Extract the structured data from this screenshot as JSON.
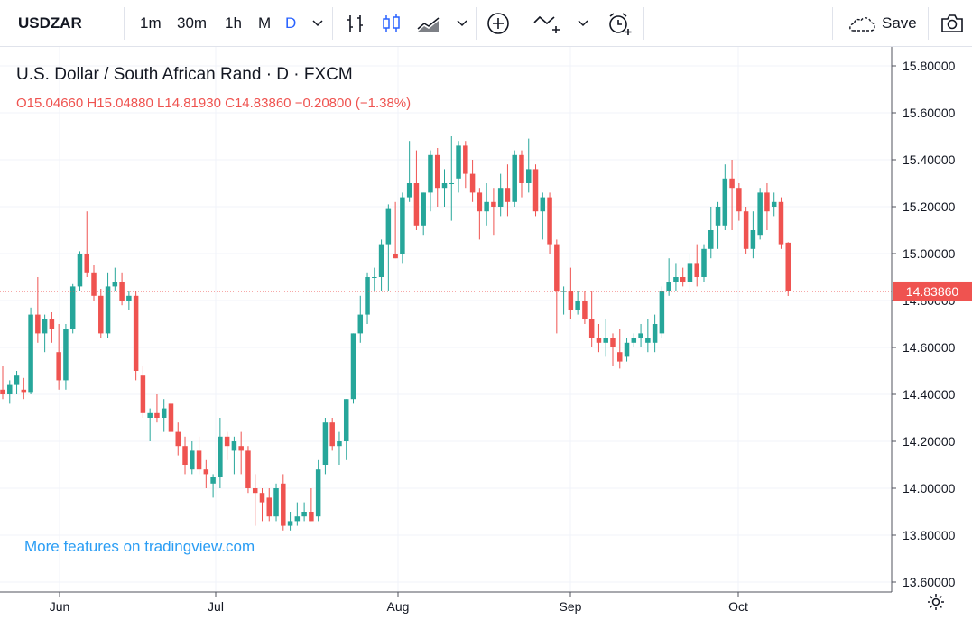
{
  "toolbar": {
    "symbol": "USDZAR",
    "intervals": [
      "1m",
      "30m",
      "1h",
      "M",
      "D"
    ],
    "active_interval": "D",
    "save_label": "Save",
    "accent": "#2962ff"
  },
  "legend": {
    "title": "U.S. Dollar / South African Rand · D · FXCM",
    "open_key": "O",
    "open": "15.04660",
    "high_key": "H",
    "high": "15.04880",
    "low_key": "L",
    "low": "14.81930",
    "close_key": "C",
    "close": "14.83860",
    "change": "−0.20800 (−1.38%)"
  },
  "promo": "More features on tradingview.com",
  "current_price_label": "14.83860",
  "colors": {
    "up": "#26a69a",
    "down": "#ef5350",
    "grid": "#f0f3fa",
    "axis": "#50535e"
  },
  "chart_data": {
    "type": "candlestick",
    "x_ticks": [
      "Jun",
      "Jul",
      "Aug",
      "Sep",
      "Oct"
    ],
    "y_ticks": [
      "13.60000",
      "13.80000",
      "14.00000",
      "14.20000",
      "14.40000",
      "14.60000",
      "14.80000",
      "15.00000",
      "15.20000",
      "15.40000",
      "15.60000",
      "15.80000"
    ],
    "ylim": [
      13.6,
      15.85
    ],
    "last_price": 14.8386,
    "candles": [
      [
        14.42,
        14.52,
        14.38,
        14.4
      ],
      [
        14.4,
        14.46,
        14.36,
        14.44
      ],
      [
        14.44,
        14.5,
        14.4,
        14.48
      ],
      [
        14.42,
        14.47,
        14.38,
        14.41
      ],
      [
        14.41,
        14.77,
        14.4,
        14.74
      ],
      [
        14.74,
        14.9,
        14.62,
        14.66
      ],
      [
        14.66,
        14.74,
        14.58,
        14.72
      ],
      [
        14.72,
        14.75,
        14.62,
        14.68
      ],
      [
        14.58,
        14.7,
        14.42,
        14.46
      ],
      [
        14.46,
        14.7,
        14.42,
        14.68
      ],
      [
        14.68,
        14.87,
        14.66,
        14.86
      ],
      [
        14.86,
        15.01,
        14.84,
        15.0
      ],
      [
        15.0,
        15.18,
        14.9,
        14.92
      ],
      [
        14.92,
        14.95,
        14.8,
        14.82
      ],
      [
        14.82,
        14.85,
        14.64,
        14.66
      ],
      [
        14.66,
        14.92,
        14.64,
        14.86
      ],
      [
        14.86,
        14.94,
        14.84,
        14.88
      ],
      [
        14.88,
        14.92,
        14.78,
        14.8
      ],
      [
        14.8,
        14.84,
        14.76,
        14.82
      ],
      [
        14.82,
        14.84,
        14.46,
        14.5
      ],
      [
        14.48,
        14.52,
        14.3,
        14.32
      ],
      [
        14.3,
        14.34,
        14.2,
        14.32
      ],
      [
        14.32,
        14.4,
        14.28,
        14.3
      ],
      [
        14.3,
        14.38,
        14.24,
        14.34
      ],
      [
        14.36,
        14.37,
        14.22,
        14.24
      ],
      [
        14.24,
        14.28,
        14.14,
        14.18
      ],
      [
        14.18,
        14.22,
        14.06,
        14.1
      ],
      [
        14.08,
        14.2,
        14.06,
        14.16
      ],
      [
        14.16,
        14.22,
        14.06,
        14.08
      ],
      [
        14.08,
        14.12,
        14.0,
        14.06
      ],
      [
        14.02,
        14.06,
        13.96,
        14.05
      ],
      [
        14.05,
        14.3,
        14.0,
        14.22
      ],
      [
        14.22,
        14.24,
        14.12,
        14.18
      ],
      [
        14.16,
        14.22,
        14.06,
        14.2
      ],
      [
        14.18,
        14.24,
        14.06,
        14.16
      ],
      [
        14.16,
        14.18,
        13.98,
        14.0
      ],
      [
        14.0,
        14.06,
        13.84,
        13.98
      ],
      [
        13.98,
        14.0,
        13.86,
        13.94
      ],
      [
        13.96,
        14.0,
        13.86,
        13.88
      ],
      [
        13.88,
        14.02,
        13.86,
        14.0
      ],
      [
        14.02,
        14.06,
        13.82,
        13.84
      ],
      [
        13.84,
        13.9,
        13.82,
        13.86
      ],
      [
        13.86,
        13.94,
        13.84,
        13.88
      ],
      [
        13.88,
        13.94,
        13.86,
        13.9
      ],
      [
        13.9,
        14.0,
        13.86,
        13.86
      ],
      [
        13.88,
        14.12,
        13.86,
        14.08
      ],
      [
        14.1,
        14.3,
        14.06,
        14.28
      ],
      [
        14.28,
        14.3,
        14.16,
        14.18
      ],
      [
        14.18,
        14.24,
        14.1,
        14.2
      ],
      [
        14.2,
        14.38,
        14.12,
        14.38
      ],
      [
        14.38,
        14.66,
        14.36,
        14.66
      ],
      [
        14.66,
        14.82,
        14.62,
        14.74
      ],
      [
        14.74,
        14.92,
        14.7,
        14.9
      ],
      [
        14.9,
        14.94,
        14.84,
        14.9
      ],
      [
        14.9,
        15.06,
        14.84,
        15.04
      ],
      [
        15.04,
        15.21,
        14.84,
        15.19
      ],
      [
        15.0,
        15.22,
        14.98,
        14.98
      ],
      [
        15.0,
        15.26,
        14.96,
        15.24
      ],
      [
        15.24,
        15.48,
        15.22,
        15.3
      ],
      [
        15.3,
        15.44,
        15.1,
        15.12
      ],
      [
        15.12,
        15.26,
        15.08,
        15.26
      ],
      [
        15.26,
        15.44,
        15.18,
        15.42
      ],
      [
        15.42,
        15.45,
        15.2,
        15.28
      ],
      [
        15.28,
        15.36,
        15.2,
        15.3
      ],
      [
        15.3,
        15.5,
        15.14,
        15.3
      ],
      [
        15.32,
        15.48,
        15.26,
        15.46
      ],
      [
        15.46,
        15.48,
        15.28,
        15.34
      ],
      [
        15.34,
        15.4,
        15.22,
        15.26
      ],
      [
        15.26,
        15.28,
        15.06,
        15.18
      ],
      [
        15.18,
        15.3,
        15.12,
        15.22
      ],
      [
        15.22,
        15.28,
        15.08,
        15.2
      ],
      [
        15.2,
        15.34,
        15.16,
        15.28
      ],
      [
        15.28,
        15.38,
        15.16,
        15.22
      ],
      [
        15.22,
        15.44,
        15.2,
        15.42
      ],
      [
        15.42,
        15.44,
        15.24,
        15.3
      ],
      [
        15.3,
        15.49,
        15.26,
        15.36
      ],
      [
        15.36,
        15.38,
        15.16,
        15.18
      ],
      [
        15.18,
        15.26,
        15.06,
        15.24
      ],
      [
        15.24,
        15.26,
        15.0,
        15.04
      ],
      [
        15.04,
        15.06,
        14.66,
        14.84
      ],
      [
        14.84,
        14.86,
        14.74,
        14.84
      ],
      [
        14.84,
        14.94,
        14.72,
        14.76
      ],
      [
        14.76,
        14.84,
        14.74,
        14.8
      ],
      [
        14.8,
        14.84,
        14.7,
        14.72
      ],
      [
        14.72,
        14.84,
        14.6,
        14.64
      ],
      [
        14.64,
        14.7,
        14.58,
        14.62
      ],
      [
        14.62,
        14.72,
        14.56,
        14.64
      ],
      [
        14.64,
        14.66,
        14.52,
        14.6
      ],
      [
        14.58,
        14.68,
        14.51,
        14.54
      ],
      [
        14.56,
        14.64,
        14.54,
        14.62
      ],
      [
        14.62,
        14.66,
        14.6,
        14.64
      ],
      [
        14.64,
        14.7,
        14.6,
        14.66
      ],
      [
        14.62,
        14.72,
        14.58,
        14.64
      ],
      [
        14.62,
        14.74,
        14.58,
        14.7
      ],
      [
        14.66,
        14.86,
        14.64,
        14.84
      ],
      [
        14.84,
        14.98,
        14.82,
        14.88
      ],
      [
        14.88,
        14.96,
        14.84,
        14.9
      ],
      [
        14.9,
        14.94,
        14.86,
        14.88
      ],
      [
        14.88,
        15.0,
        14.84,
        14.96
      ],
      [
        14.96,
        15.04,
        14.86,
        14.9
      ],
      [
        14.9,
        15.04,
        14.88,
        15.02
      ],
      [
        15.02,
        15.2,
        14.98,
        15.1
      ],
      [
        15.12,
        15.22,
        15.02,
        15.2
      ],
      [
        15.12,
        15.38,
        15.1,
        15.32
      ],
      [
        15.32,
        15.4,
        15.1,
        15.28
      ],
      [
        15.28,
        15.3,
        15.14,
        15.18
      ],
      [
        15.18,
        15.2,
        15.0,
        15.02
      ],
      [
        15.02,
        15.18,
        14.98,
        15.1
      ],
      [
        15.08,
        15.28,
        15.06,
        15.26
      ],
      [
        15.26,
        15.3,
        15.1,
        15.18
      ],
      [
        15.2,
        15.26,
        15.16,
        15.22
      ],
      [
        15.22,
        15.24,
        15.02,
        15.04
      ],
      [
        15.0466,
        15.0488,
        14.8193,
        14.8386
      ]
    ]
  }
}
